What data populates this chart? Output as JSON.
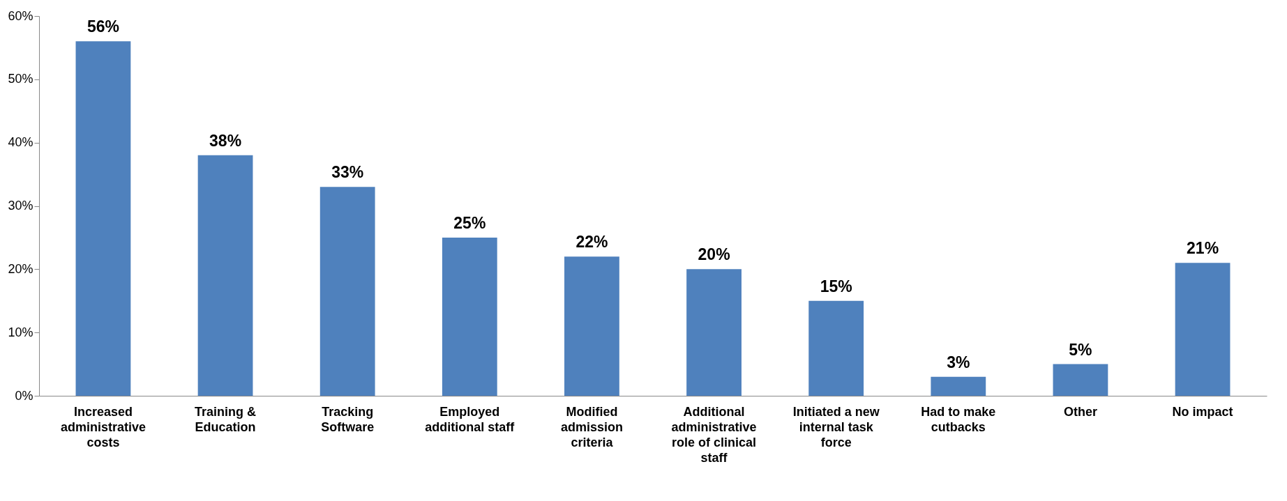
{
  "chart_data": {
    "type": "bar",
    "categories": [
      "Increased administrative costs",
      "Training & Education",
      "Tracking Software",
      "Employed additional staff",
      "Modified admission criteria",
      "Additional administrative role of clinical staff",
      "Initiated a new internal task force",
      "Had to make cutbacks",
      "Other",
      "No impact"
    ],
    "values": [
      56,
      38,
      33,
      25,
      22,
      20,
      15,
      3,
      5,
      21
    ],
    "value_labels": [
      "56%",
      "38%",
      "33%",
      "25%",
      "22%",
      "20%",
      "15%",
      "3%",
      "5%",
      "21%"
    ],
    "color": "#4f81bd",
    "ylim": [
      0,
      60
    ],
    "yticks": [
      {
        "value": 0,
        "label": "0%"
      },
      {
        "value": 10,
        "label": "10%"
      },
      {
        "value": 20,
        "label": "20%"
      },
      {
        "value": 30,
        "label": "30%"
      },
      {
        "value": 40,
        "label": "40%"
      },
      {
        "value": 50,
        "label": "50%"
      },
      {
        "value": 60,
        "label": "60%"
      }
    ],
    "grid": false
  }
}
